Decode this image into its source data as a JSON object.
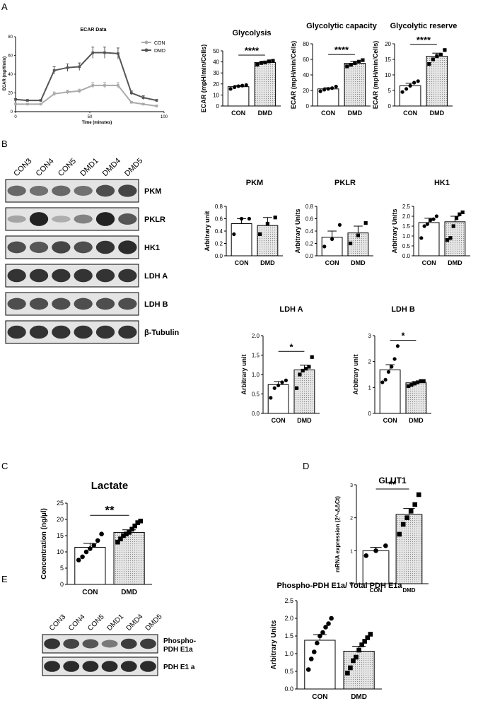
{
  "panels": {
    "A": "A",
    "B": "B",
    "C": "C",
    "D": "D",
    "E": "E"
  },
  "chart_data": [
    {
      "id": "ecar",
      "type": "line",
      "title": "ECAR Data",
      "xlabel": "Time (minutes)",
      "ylabel": "ECAR (mpH/min)",
      "xlim": [
        0,
        100
      ],
      "ylim": [
        0,
        80
      ],
      "xticks": [
        0,
        50,
        100
      ],
      "yticks": [
        0,
        20,
        40,
        60,
        80
      ],
      "legend": "top-right",
      "series": [
        {
          "name": "CON",
          "color": "#aaaaaa",
          "x": [
            0,
            8,
            17,
            26,
            35,
            43,
            52,
            60,
            69,
            78,
            86,
            95
          ],
          "y": [
            8,
            8,
            8,
            19,
            21,
            22,
            28,
            28,
            28,
            10,
            8,
            6
          ],
          "err": [
            1,
            1,
            1,
            2,
            2,
            2,
            3,
            3,
            3,
            1,
            1,
            1
          ]
        },
        {
          "name": "DMD",
          "color": "#555555",
          "x": [
            0,
            8,
            17,
            26,
            35,
            43,
            52,
            60,
            69,
            78,
            86,
            95
          ],
          "y": [
            13,
            12,
            12,
            44,
            47,
            48,
            63,
            63,
            62,
            20,
            15,
            12
          ],
          "err": [
            1,
            1,
            1,
            4,
            4,
            4,
            6,
            6,
            6,
            2,
            2,
            1
          ]
        }
      ]
    },
    {
      "id": "glyco",
      "type": "bar",
      "title": "Glycolysis",
      "ylabel": "ECAR (mpH/min/Cells)",
      "categories": [
        "CON",
        "DMD"
      ],
      "ylim": [
        0,
        50
      ],
      "yticks": [
        0,
        10,
        20,
        30,
        40,
        50
      ],
      "values": [
        17.5,
        39.5
      ],
      "err": [
        1.2,
        1.2
      ],
      "points": [
        [
          15.5,
          17,
          18,
          18.5,
          19
        ],
        [
          37.5,
          39,
          39.5,
          40.5,
          41
        ]
      ],
      "sig": "****",
      "marker": [
        "circle",
        "square"
      ]
    },
    {
      "id": "capacity",
      "type": "bar",
      "title": "Glycolytic capacity",
      "ylabel": "ECAR (mpH/min/Cells)",
      "categories": [
        "CON",
        "DMD"
      ],
      "ylim": [
        0,
        80
      ],
      "yticks": [
        0,
        20,
        40,
        60,
        80
      ],
      "values": [
        22,
        55
      ],
      "err": [
        1.5,
        2.5
      ],
      "points": [
        [
          19,
          21,
          22,
          23,
          25
        ],
        [
          51,
          53,
          55,
          57,
          59
        ]
      ],
      "sig": "****",
      "marker": [
        "circle",
        "square"
      ]
    },
    {
      "id": "reserve",
      "type": "bar",
      "title": "Glycolytic reserve",
      "ylabel": "ECAR (mpH/min/Cells)",
      "categories": [
        "CON",
        "DMD"
      ],
      "ylim": [
        0,
        20
      ],
      "yticks": [
        0,
        5,
        10,
        15,
        20
      ],
      "values": [
        6.5,
        16
      ],
      "err": [
        0.8,
        1
      ],
      "points": [
        [
          4.5,
          5.5,
          6.5,
          7.5,
          8
        ],
        [
          13.5,
          15,
          16,
          16.5,
          18
        ]
      ],
      "sig": "****",
      "marker": [
        "circle",
        "square"
      ]
    },
    {
      "id": "pkm",
      "type": "bar",
      "title": "PKM",
      "ylabel": "Arbitrary unit",
      "categories": [
        "CON",
        "DMD"
      ],
      "ylim": [
        0,
        0.8
      ],
      "yticks": [
        0.0,
        0.2,
        0.4,
        0.6,
        0.8
      ],
      "decimals": 1,
      "values": [
        0.52,
        0.49
      ],
      "err": [
        0.08,
        0.13
      ],
      "points": [
        [
          0.35,
          0.6,
          0.6
        ],
        [
          0.35,
          0.52,
          0.62
        ]
      ],
      "sig": "",
      "marker": [
        "circle",
        "square"
      ]
    },
    {
      "id": "pklr",
      "type": "bar",
      "title": "PKLR",
      "ylabel": "Arbitrary Units",
      "categories": [
        "CON",
        "DMD"
      ],
      "ylim": [
        0,
        0.8
      ],
      "yticks": [
        0.0,
        0.2,
        0.4,
        0.6,
        0.8
      ],
      "decimals": 1,
      "values": [
        0.3,
        0.37
      ],
      "err": [
        0.1,
        0.11
      ],
      "points": [
        [
          0.15,
          0.27,
          0.5
        ],
        [
          0.2,
          0.33,
          0.53
        ]
      ],
      "sig": "",
      "marker": [
        "circle",
        "square"
      ]
    },
    {
      "id": "hk1",
      "type": "bar",
      "title": "HK1",
      "ylabel": "Arbitrary Units",
      "categories": [
        "CON",
        "DMD"
      ],
      "ylim": [
        0,
        2.5
      ],
      "yticks": [
        0.0,
        0.5,
        1.0,
        1.5,
        2.0,
        2.5
      ],
      "decimals": 1,
      "values": [
        1.68,
        1.72
      ],
      "err": [
        0.22,
        0.28
      ],
      "points": [
        [
          0.9,
          1.5,
          1.6,
          1.8,
          1.85,
          2.0
        ],
        [
          0.8,
          0.9,
          1.5,
          1.9,
          2.1,
          2.2
        ]
      ],
      "sig": "",
      "marker": [
        "circle",
        "square"
      ]
    },
    {
      "id": "ldha",
      "type": "bar",
      "title": "LDH A",
      "ylabel": "Arbitrary unit",
      "categories": [
        "CON",
        "DMD"
      ],
      "ylim": [
        0,
        2.0
      ],
      "yticks": [
        0.0,
        0.5,
        1.0,
        1.5,
        2.0
      ],
      "decimals": 1,
      "values": [
        0.74,
        1.12
      ],
      "err": [
        0.08,
        0.12
      ],
      "points": [
        [
          0.4,
          0.65,
          0.72,
          0.8,
          0.85
        ],
        [
          0.65,
          1.0,
          1.1,
          1.15,
          1.2,
          1.45
        ]
      ],
      "sig": "*",
      "marker": [
        "circle",
        "square"
      ]
    },
    {
      "id": "ldhb",
      "type": "bar",
      "title": "LDH B",
      "ylabel": "Arbitrary unit",
      "categories": [
        "CON",
        "DMD"
      ],
      "ylim": [
        0,
        3
      ],
      "yticks": [
        0,
        1,
        2,
        3
      ],
      "values": [
        1.68,
        1.18
      ],
      "err": [
        0.2,
        0.05
      ],
      "points": [
        [
          1.2,
          1.3,
          1.6,
          1.8,
          2.1,
          2.6
        ],
        [
          1.05,
          1.1,
          1.15,
          1.2,
          1.25,
          1.25
        ]
      ],
      "sig": "*",
      "marker": [
        "circle",
        "square"
      ]
    },
    {
      "id": "lactate",
      "type": "bar",
      "title": "Lactate",
      "ylabel": "Concentration (ng/µl)",
      "categories": [
        "CON",
        "DMD"
      ],
      "ylim": [
        0,
        25
      ],
      "yticks": [
        0,
        5,
        10,
        15,
        20,
        25
      ],
      "values": [
        11.4,
        16
      ],
      "err": [
        1.2,
        0.8
      ],
      "points": [
        [
          7.5,
          8.5,
          10,
          11,
          12,
          13.5,
          15.5
        ],
        [
          13,
          14,
          15,
          15.5,
          16,
          17,
          18,
          19,
          19.5
        ]
      ],
      "sig": "**",
      "marker": [
        "circle",
        "square"
      ]
    },
    {
      "id": "glut1",
      "type": "bar",
      "title": "GLUT1",
      "ylabel": "mRNA expression (2^-ΔΔCt)",
      "categories": [
        "CON",
        "DMD"
      ],
      "ylim": [
        0,
        3
      ],
      "yticks": [
        0,
        1,
        2,
        3
      ],
      "values": [
        1.0,
        2.1
      ],
      "err": [
        0.1,
        0.18
      ],
      "points": [
        [
          0.85,
          1.0,
          1.15
        ],
        [
          1.5,
          1.8,
          2.0,
          2.2,
          2.4,
          2.7
        ]
      ],
      "sig": "**",
      "marker": [
        "circle",
        "square"
      ]
    },
    {
      "id": "pdh",
      "type": "bar",
      "title": "Phospho-PDH E1a/ Total PDH E1a",
      "ylabel": "Arbitrary Units",
      "categories": [
        "CON",
        "DMD"
      ],
      "ylim": [
        0,
        2.5
      ],
      "yticks": [
        0.0,
        0.5,
        1.0,
        1.5,
        2.0,
        2.5
      ],
      "decimals": 1,
      "values": [
        1.38,
        1.07
      ],
      "err": [
        0.16,
        0.14
      ],
      "points": [
        [
          0.55,
          0.85,
          1.05,
          1.3,
          1.5,
          1.6,
          1.75,
          1.85,
          2.0
        ],
        [
          0.45,
          0.6,
          0.8,
          0.9,
          1.1,
          1.25,
          1.35,
          1.45,
          1.55
        ]
      ],
      "sig": "",
      "marker": [
        "circle",
        "square"
      ]
    }
  ],
  "blot_b": {
    "lanes": [
      "CON3",
      "CON4",
      "CON5",
      "DMD1",
      "DMD4",
      "DMD5"
    ],
    "rows": [
      {
        "label": "PKM",
        "intensity": [
          0.55,
          0.5,
          0.55,
          0.5,
          0.7,
          0.75
        ]
      },
      {
        "label": "PKLR",
        "intensity": [
          0.2,
          0.95,
          0.15,
          0.4,
          0.95,
          0.65
        ]
      },
      {
        "label": "HK1",
        "intensity": [
          0.7,
          0.65,
          0.75,
          0.7,
          0.85,
          0.9
        ]
      },
      {
        "label": "LDH A",
        "intensity": [
          0.85,
          0.85,
          0.85,
          0.85,
          0.85,
          0.85
        ]
      },
      {
        "label": "LDH B",
        "intensity": [
          0.7,
          0.7,
          0.7,
          0.7,
          0.7,
          0.7
        ]
      },
      {
        "label": "β-Tubulin",
        "intensity": [
          0.85,
          0.85,
          0.85,
          0.85,
          0.85,
          0.85
        ]
      }
    ]
  },
  "blot_e": {
    "lanes": [
      "CON3",
      "CON4",
      "CON5",
      "DMD1",
      "DMD4",
      "DMD5"
    ],
    "rows": [
      {
        "label": "Phospho-",
        "label2": "PDH E1a",
        "intensity": [
          0.85,
          0.75,
          0.65,
          0.45,
          0.8,
          0.8
        ]
      },
      {
        "label": "PDH E1 a",
        "label2": "",
        "intensity": [
          0.9,
          0.9,
          0.9,
          0.9,
          0.9,
          0.9
        ]
      }
    ]
  }
}
